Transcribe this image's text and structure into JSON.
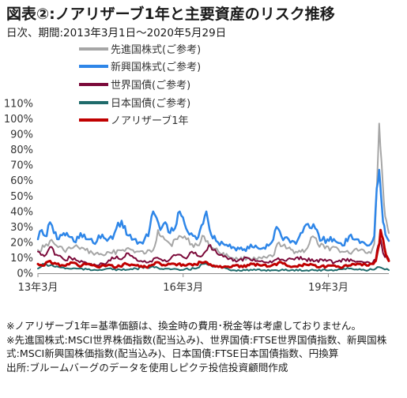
{
  "header": {
    "title": "図表②:ノアリザーブ1年と主要資産のリスク推移",
    "subtitle": "日次、期間:2013年3月1日～2020年5月29日"
  },
  "notes": [
    "※ノアリザーブ1年=基準価額は、換金時の費用･税金等は考慮しておりません。",
    "※先進国株式:MSCI世界株価指数(配当込み)、世界国債:FTSE世界国債指数、新興国株式:MSCI新興国株価指数(配当込み)、日本国債:FTSE日本国債指数、円換算",
    "出所:ブルームバーグのデータを使用しピクテ投信投資顧問作成"
  ],
  "chart_data": {
    "type": "line",
    "title": "",
    "xlabel": "",
    "ylabel": "",
    "ylim": [
      0,
      110
    ],
    "yticks": [
      "0%",
      "10%",
      "20%",
      "30%",
      "40%",
      "50%",
      "60%",
      "70%",
      "80%",
      "90%",
      "100%",
      "110%"
    ],
    "xticks": [
      {
        "label": "13年3月",
        "x": 2013.17
      },
      {
        "label": "16年3月",
        "x": 2016.17
      },
      {
        "label": "19年3月",
        "x": 2019.17
      }
    ],
    "xlim": [
      2013.17,
      2020.42
    ],
    "grid": false,
    "legend_position": "top-left",
    "series": [
      {
        "name": "先進国株式(ご参考)",
        "color": "#a6a6a6",
        "width": 2,
        "x": [
          2013.17,
          2013.3,
          2013.42,
          2013.55,
          2013.7,
          2013.85,
          2014.0,
          2014.15,
          2014.3,
          2014.5,
          2014.7,
          2014.85,
          2015.0,
          2015.2,
          2015.4,
          2015.55,
          2015.65,
          2015.75,
          2015.9,
          2016.05,
          2016.2,
          2016.35,
          2016.5,
          2016.6,
          2016.75,
          2016.9,
          2017.1,
          2017.3,
          2017.5,
          2017.7,
          2017.9,
          2018.05,
          2018.15,
          2018.3,
          2018.5,
          2018.7,
          2018.85,
          2018.95,
          2019.1,
          2019.3,
          2019.45,
          2019.6,
          2019.75,
          2019.9,
          2020.05,
          2020.12,
          2020.18,
          2020.22,
          2020.27,
          2020.32,
          2020.37,
          2020.42
        ],
        "y": [
          15,
          17,
          21,
          18,
          15,
          16,
          17,
          15,
          13,
          12,
          13,
          15,
          16,
          14,
          13,
          15,
          28,
          24,
          19,
          22,
          24,
          19,
          18,
          24,
          17,
          14,
          11,
          9,
          10,
          9,
          10,
          12,
          20,
          16,
          14,
          15,
          24,
          19,
          16,
          17,
          14,
          13,
          16,
          15,
          13,
          19,
          62,
          97,
          72,
          45,
          34,
          26
        ]
      },
      {
        "name": "新興国株式(ご参考)",
        "color": "#2e86e8",
        "width": 2.5,
        "x": [
          2013.17,
          2013.25,
          2013.35,
          2013.42,
          2013.5,
          2013.6,
          2013.7,
          2013.8,
          2013.95,
          2014.05,
          2014.2,
          2014.35,
          2014.5,
          2014.6,
          2014.75,
          2014.9,
          2015.0,
          2015.15,
          2015.3,
          2015.45,
          2015.55,
          2015.62,
          2015.7,
          2015.8,
          2015.9,
          2016.0,
          2016.1,
          2016.2,
          2016.3,
          2016.45,
          2016.55,
          2016.65,
          2016.75,
          2016.85,
          2017.0,
          2017.2,
          2017.4,
          2017.6,
          2017.8,
          2018.0,
          2018.1,
          2018.2,
          2018.35,
          2018.5,
          2018.6,
          2018.75,
          2018.9,
          2019.0,
          2019.15,
          2019.35,
          2019.5,
          2019.6,
          2019.75,
          2019.9,
          2020.05,
          2020.12,
          2020.17,
          2020.22,
          2020.26,
          2020.3,
          2020.35,
          2020.42
        ],
        "y": [
          22,
          28,
          24,
          33,
          26,
          22,
          26,
          24,
          20,
          26,
          22,
          19,
          25,
          21,
          26,
          34,
          25,
          22,
          20,
          24,
          40,
          36,
          28,
          33,
          26,
          29,
          40,
          32,
          25,
          22,
          31,
          40,
          25,
          21,
          19,
          17,
          15,
          17,
          16,
          20,
          30,
          24,
          22,
          19,
          26,
          32,
          29,
          21,
          22,
          20,
          18,
          24,
          22,
          20,
          19,
          24,
          55,
          67,
          50,
          33,
          25,
          21
        ]
      },
      {
        "name": "世界国債(ご参考)",
        "color": "#7b0a3a",
        "width": 2,
        "x": [
          2013.17,
          2013.3,
          2013.42,
          2013.55,
          2013.7,
          2013.85,
          2014.0,
          2014.2,
          2014.4,
          2014.6,
          2014.8,
          2014.9,
          2015.0,
          2015.15,
          2015.3,
          2015.45,
          2015.6,
          2015.75,
          2015.9,
          2016.05,
          2016.2,
          2016.35,
          2016.5,
          2016.6,
          2016.7,
          2016.8,
          2016.9,
          2017.1,
          2017.3,
          2017.5,
          2017.7,
          2017.9,
          2018.1,
          2018.3,
          2018.5,
          2018.7,
          2018.9,
          2019.1,
          2019.3,
          2019.5,
          2019.7,
          2019.9,
          2020.05,
          2020.15,
          2020.2,
          2020.25,
          2020.3,
          2020.42
        ],
        "y": [
          14,
          11,
          17,
          12,
          9,
          10,
          8,
          6,
          5,
          7,
          11,
          9,
          13,
          10,
          8,
          7,
          10,
          8,
          9,
          12,
          10,
          14,
          11,
          13,
          18,
          15,
          12,
          9,
          8,
          10,
          8,
          7,
          9,
          8,
          10,
          9,
          8,
          9,
          7,
          9,
          8,
          7,
          6,
          9,
          18,
          22,
          13,
          9
        ]
      },
      {
        "name": "日本国債(ご参考)",
        "color": "#1f6b6b",
        "width": 2,
        "x": [
          2013.17,
          2013.3,
          2013.42,
          2013.6,
          2013.8,
          2014.0,
          2014.3,
          2014.6,
          2014.9,
          2015.2,
          2015.5,
          2015.8,
          2016.1,
          2016.4,
          2016.6,
          2016.9,
          2017.2,
          2017.6,
          2018.0,
          2018.4,
          2018.8,
          2019.2,
          2019.6,
          2020.0,
          2020.15,
          2020.22,
          2020.3,
          2020.42
        ],
        "y": [
          3,
          6,
          5,
          4,
          3,
          3,
          2,
          3,
          2,
          3,
          4,
          3,
          2,
          3,
          6,
          4,
          2,
          2,
          2,
          2,
          2,
          2,
          3,
          2,
          3,
          4,
          3,
          2
        ]
      },
      {
        "name": "ノアリザーブ1年",
        "color": "#c00000",
        "width": 3,
        "x": [
          2013.17,
          2013.3,
          2013.42,
          2013.55,
          2013.7,
          2013.85,
          2014.0,
          2014.2,
          2014.4,
          2014.6,
          2014.8,
          2015.0,
          2015.2,
          2015.4,
          2015.6,
          2015.8,
          2016.0,
          2016.2,
          2016.4,
          2016.6,
          2016.8,
          2017.0,
          2017.2,
          2017.4,
          2017.6,
          2017.8,
          2018.0,
          2018.2,
          2018.4,
          2018.6,
          2018.8,
          2019.0,
          2019.2,
          2019.4,
          2019.6,
          2019.8,
          2020.0,
          2020.1,
          2020.15,
          2020.2,
          2020.25,
          2020.3,
          2020.36,
          2020.42
        ],
        "y": [
          6,
          5,
          8,
          6,
          5,
          7,
          5,
          6,
          4,
          5,
          4,
          6,
          5,
          4,
          7,
          5,
          6,
          5,
          6,
          7,
          5,
          4,
          5,
          4,
          6,
          5,
          5,
          7,
          4,
          5,
          6,
          4,
          5,
          4,
          5,
          6,
          5,
          6,
          8,
          16,
          28,
          22,
          12,
          8
        ]
      }
    ]
  }
}
